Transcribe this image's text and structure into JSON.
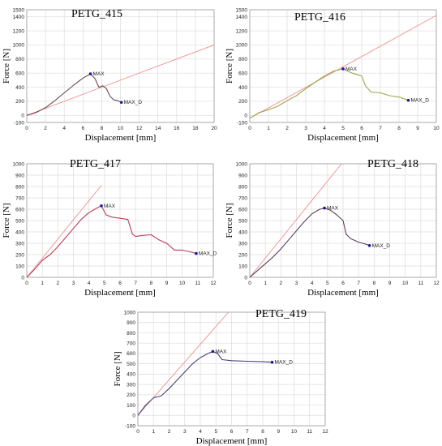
{
  "chart_data": [
    {
      "type": "line",
      "title": "PETG_415",
      "xlabel": "Displacement [mm]",
      "ylabel": "Force [N]",
      "xlim": [
        0,
        20
      ],
      "ylim": [
        -100,
        1500
      ],
      "xticks": [
        0,
        2,
        4,
        6,
        8,
        10,
        12,
        14,
        16,
        18,
        20
      ],
      "yticks": [
        -100,
        0,
        200,
        400,
        600,
        800,
        1000,
        1200,
        1400,
        1500
      ],
      "grid": true,
      "series": [
        {
          "color": "#6b4a52",
          "x": [
            0,
            1,
            2,
            3,
            4,
            5,
            6,
            6.8,
            7.3,
            7.7,
            8.1,
            8.5,
            8.9,
            9.3,
            9.7,
            10.1
          ],
          "y": [
            0,
            40,
            110,
            210,
            320,
            430,
            530,
            590,
            520,
            400,
            420,
            380,
            270,
            220,
            210,
            185
          ]
        },
        {
          "color": "#ee8f8f",
          "x": [
            0,
            20
          ],
          "y": [
            0,
            1000
          ]
        }
      ],
      "markers": [
        {
          "label": "MAX",
          "x": 6.8,
          "y": 590
        },
        {
          "label": "MAX_D",
          "x": 10.1,
          "y": 185
        }
      ]
    },
    {
      "type": "line",
      "title": "PETG_416",
      "xlabel": "Displacement [mm]",
      "ylabel": "Force [N]",
      "xlim": [
        0,
        10
      ],
      "ylim": [
        -100,
        1500
      ],
      "xticks": [
        0,
        1,
        2,
        3,
        4,
        5,
        6,
        7,
        8,
        9,
        10
      ],
      "yticks": [
        -100,
        0,
        200,
        400,
        600,
        800,
        1000,
        1200,
        1400,
        1500
      ],
      "grid": true,
      "series": [
        {
          "color": "#9aa84a",
          "x": [
            0,
            0.5,
            1,
            1.5,
            2,
            2.5,
            3,
            3.5,
            4,
            4.5,
            5,
            5.5,
            6,
            6.2,
            6.5,
            7,
            7.5,
            8,
            8.5
          ],
          "y": [
            -40,
            40,
            80,
            130,
            210,
            280,
            380,
            470,
            560,
            630,
            660,
            600,
            560,
            420,
            330,
            320,
            280,
            260,
            215
          ]
        },
        {
          "color": "#ee8f8f",
          "x": [
            0,
            10
          ],
          "y": [
            -40,
            1420
          ]
        }
      ],
      "markers": [
        {
          "label": "MAX",
          "x": 5.0,
          "y": 660
        },
        {
          "label": "MAX_D",
          "x": 8.5,
          "y": 215
        }
      ]
    },
    {
      "type": "line",
      "title": "PETG_417",
      "xlabel": "Displacement [mm]",
      "ylabel": "Force [N]",
      "xlim": [
        0,
        12
      ],
      "ylim": [
        0,
        1000
      ],
      "xticks": [
        0,
        1,
        2,
        3,
        4,
        5,
        6,
        7,
        8,
        9,
        10,
        11,
        12
      ],
      "yticks": [
        0,
        100,
        200,
        300,
        400,
        500,
        600,
        700,
        800,
        900,
        1000
      ],
      "grid": true,
      "series": [
        {
          "color": "#c0395a",
          "x": [
            0,
            0.5,
            1,
            1.5,
            2,
            2.5,
            3,
            3.5,
            4,
            4.5,
            4.8,
            5.1,
            5.5,
            6,
            6.5,
            6.8,
            7,
            7.5,
            8,
            8.5,
            9,
            9.5,
            10,
            10.5,
            10.9
          ],
          "y": [
            0,
            70,
            150,
            200,
            270,
            350,
            430,
            510,
            570,
            610,
            630,
            550,
            530,
            520,
            510,
            380,
            360,
            370,
            375,
            330,
            300,
            240,
            240,
            225,
            210
          ]
        },
        {
          "color": "#ee8f8f",
          "x": [
            0,
            4.8
          ],
          "y": [
            0,
            810
          ]
        }
      ],
      "markers": [
        {
          "label": "MAX",
          "x": 4.8,
          "y": 630
        },
        {
          "label": "MAX_D",
          "x": 10.9,
          "y": 210
        }
      ]
    },
    {
      "type": "line",
      "title": "PETG_418",
      "xlabel": "Displacement [mm]",
      "ylabel": "Force [N]",
      "xlim": [
        0,
        12
      ],
      "ylim": [
        0,
        1000
      ],
      "xticks": [
        0,
        1,
        2,
        3,
        4,
        5,
        6,
        7,
        8,
        9,
        10,
        11,
        12
      ],
      "yticks": [
        0,
        100,
        200,
        300,
        400,
        500,
        600,
        700,
        800,
        900,
        1000
      ],
      "grid": true,
      "series": [
        {
          "color": "#5a3f5a",
          "x": [
            0,
            0.5,
            1,
            1.5,
            2,
            2.5,
            3,
            3.5,
            4,
            4.5,
            4.8,
            5.2,
            5.6,
            6,
            6.2,
            6.5,
            7,
            7.5,
            7.7
          ],
          "y": [
            0,
            60,
            120,
            180,
            250,
            330,
            410,
            490,
            560,
            600,
            610,
            590,
            550,
            500,
            380,
            340,
            310,
            290,
            280
          ]
        },
        {
          "color": "#ee8f8f",
          "x": [
            0,
            5.9
          ],
          "y": [
            0,
            1000
          ]
        }
      ],
      "markers": [
        {
          "label": "MAX",
          "x": 4.8,
          "y": 610
        },
        {
          "label": "MAX_D",
          "x": 7.7,
          "y": 280
        }
      ]
    },
    {
      "type": "line",
      "title": "PETG_419",
      "xlabel": "Displacement [mm]",
      "ylabel": "Force [N]",
      "xlim": [
        0,
        12
      ],
      "ylim": [
        -100,
        1000
      ],
      "xticks": [
        0,
        1,
        2,
        3,
        4,
        5,
        6,
        7,
        8,
        9,
        10,
        11,
        12
      ],
      "yticks": [
        -100,
        0,
        100,
        200,
        300,
        400,
        500,
        600,
        700,
        800,
        900,
        1000
      ],
      "grid": true,
      "series": [
        {
          "color": "#4a3f7a",
          "x": [
            0,
            0.5,
            1,
            1.5,
            2,
            2.5,
            3,
            3.5,
            4,
            4.5,
            4.8,
            5.1,
            5.4,
            6,
            7,
            8,
            8.6
          ],
          "y": [
            0,
            100,
            170,
            190,
            260,
            340,
            420,
            500,
            560,
            600,
            620,
            600,
            540,
            530,
            525,
            520,
            515
          ]
        },
        {
          "color": "#ee8f8f",
          "x": [
            0,
            5.8
          ],
          "y": [
            0,
            1000
          ]
        }
      ],
      "markers": [
        {
          "label": "MAX",
          "x": 4.8,
          "y": 620
        },
        {
          "label": "MAX_D",
          "x": 8.6,
          "y": 515
        }
      ]
    }
  ]
}
